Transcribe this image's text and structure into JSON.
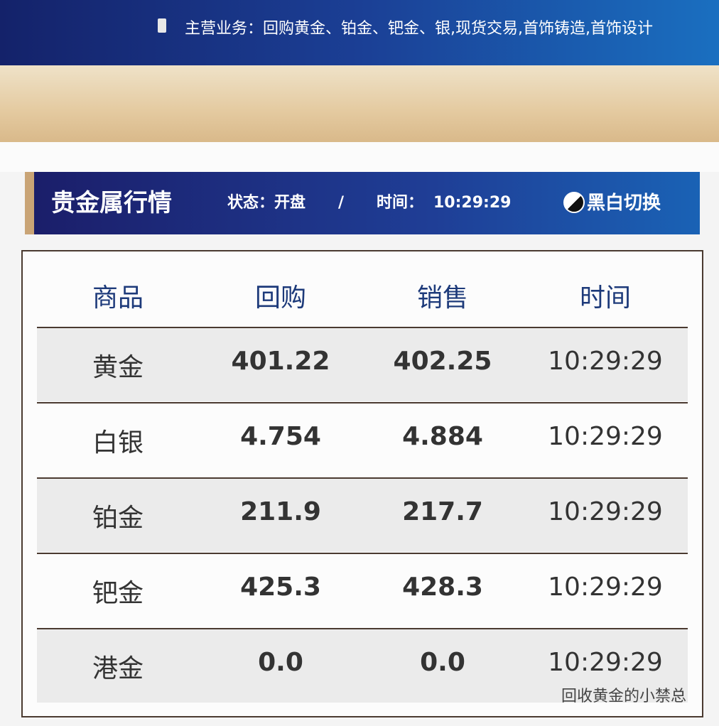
{
  "top_bar": {
    "business": "主营业务：回购黄金、铂金、钯金、银,现货交易,首饰铸造,首饰设计"
  },
  "panel": {
    "title": "贵金属行情",
    "status": "状态：开盘",
    "separator": "/",
    "time_label": "时间：",
    "time": "10:29:29",
    "toggle": "黑白切换"
  },
  "table": {
    "headers": [
      "商品",
      "回购",
      "销售",
      "时间"
    ],
    "rows": [
      [
        "黄金",
        "401.22",
        "402.25",
        "10:29:29"
      ],
      [
        "白银",
        "4.754",
        "4.884",
        "10:29:29"
      ],
      [
        "铂金",
        "211.9",
        "217.7",
        "10:29:29"
      ],
      [
        "钯金",
        "425.3",
        "428.3",
        "10:29:29"
      ],
      [
        "港金",
        "0.0",
        "0.0",
        "10:29:29"
      ]
    ]
  },
  "watermark": "回收黄金的小禁总"
}
